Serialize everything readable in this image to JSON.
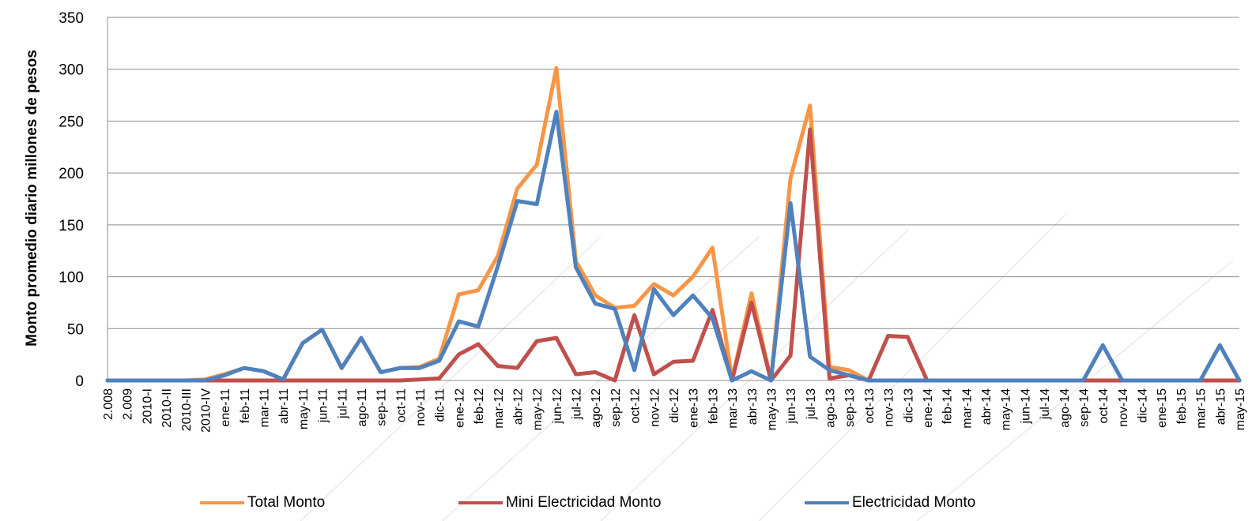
{
  "chart_data": {
    "type": "line",
    "title": "",
    "xlabel": "",
    "ylabel": "Monto promedio diario millones de pesos",
    "ylim": [
      0,
      350
    ],
    "yticks": [
      0,
      50,
      100,
      150,
      200,
      250,
      300,
      350
    ],
    "grid": true,
    "legend_position": "bottom",
    "categories": [
      "2.008",
      "2.009",
      "2010-I",
      "2010-II",
      "2010-III",
      "2010-IV",
      "ene-11",
      "feb-11",
      "mar-11",
      "abr-11",
      "may-11",
      "jun-11",
      "jul-11",
      "ago-11",
      "sep-11",
      "oct-11",
      "nov-11",
      "dic-11",
      "ene-12",
      "feb-12",
      "mar-12",
      "abr-12",
      "may-12",
      "jun-12",
      "jul-12",
      "ago-12",
      "sep-12",
      "oct-12",
      "nov-12",
      "dic-12",
      "ene-13",
      "feb-13",
      "mar-13",
      "abr-13",
      "may-13",
      "jun-13",
      "jul-13",
      "ago-13",
      "sep-13",
      "oct-13",
      "nov-13",
      "dic-13",
      "ene-14",
      "feb-14",
      "mar-14",
      "abr-14",
      "may-14",
      "jun-14",
      "jul-14",
      "ago-14",
      "sep-14",
      "oct-14",
      "nov-14",
      "dic-14",
      "ene-15",
      "feb-15",
      "mar-15",
      "abr-15",
      "may-15"
    ],
    "series": [
      {
        "name": "Total Monto",
        "color": "#F79646",
        "values": [
          0,
          0,
          0,
          0,
          0,
          1,
          6,
          12,
          9,
          1,
          36,
          49,
          12,
          41,
          8,
          12,
          13,
          21,
          83,
          87,
          120,
          185,
          208,
          301,
          115,
          82,
          70,
          72,
          93,
          82,
          100,
          128,
          1,
          84,
          0,
          195,
          265,
          13,
          10,
          0,
          0,
          0,
          0,
          0,
          0,
          0,
          0,
          0,
          0,
          0,
          0,
          0,
          0,
          0,
          0,
          0,
          0,
          0,
          0
        ]
      },
      {
        "name": "Mini Electricidad Monto",
        "color": "#C0504D",
        "values": [
          0,
          0,
          0,
          0,
          0,
          0,
          0,
          0,
          0,
          0,
          0,
          0,
          0,
          0,
          0,
          0,
          1,
          2,
          25,
          35,
          14,
          12,
          38,
          41,
          6,
          8,
          0,
          63,
          6,
          18,
          19,
          68,
          0,
          75,
          0,
          24,
          242,
          2,
          5,
          0,
          43,
          42,
          0,
          0,
          0,
          0,
          0,
          0,
          0,
          0,
          0,
          0,
          0,
          0,
          0,
          0,
          0,
          0,
          0
        ]
      },
      {
        "name": "Electricidad Monto",
        "color": "#4F81BD",
        "values": [
          0,
          0,
          0,
          0,
          0,
          0,
          5,
          12,
          9,
          1,
          36,
          49,
          12,
          41,
          8,
          12,
          12,
          19,
          57,
          52,
          110,
          173,
          170,
          259,
          109,
          74,
          69,
          10,
          88,
          63,
          82,
          60,
          0,
          9,
          0,
          171,
          23,
          10,
          5,
          0,
          0,
          0,
          0,
          0,
          0,
          0,
          0,
          0,
          0,
          0,
          0,
          34,
          0,
          0,
          0,
          0,
          0,
          34,
          0
        ]
      }
    ]
  }
}
